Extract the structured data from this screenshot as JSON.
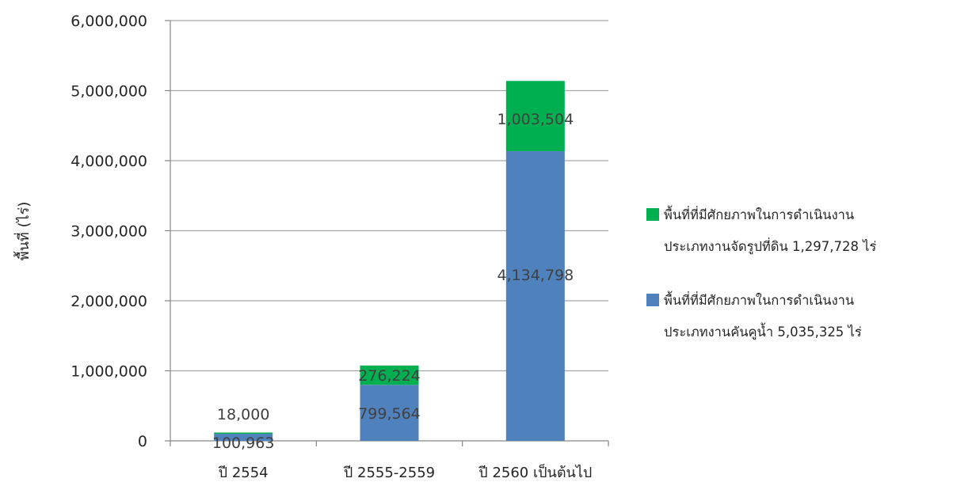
{
  "chart_data": {
    "type": "bar",
    "stacked": true,
    "title": "",
    "xlabel": "",
    "ylabel": "พื้นที่ (ไร่)",
    "ylim": [
      0,
      6000000
    ],
    "yticks": [
      "0",
      "1,000,000",
      "2,000,000",
      "3,000,000",
      "4,000,000",
      "5,000,000",
      "6,000,000"
    ],
    "categories": [
      "ปี 2554",
      "ปี 2555-2559",
      "ปี 2560 เป็นต้นไป"
    ],
    "grid": true,
    "legend_position": "right",
    "series": [
      {
        "name": "พื้นที่ที่มีศักยภาพในการดำเนินงาน ประเภทงานคันคูน้ำ 5,035,325 ไร่",
        "legend_lines": [
          "พื้นที่ที่มีศักยภาพในการดำเนินงาน",
          "ประเภทงานคันคูน้ำ 5,035,325 ไร่"
        ],
        "color": "#4f81bd",
        "values": [
          100963,
          799564,
          4134798
        ],
        "labels": [
          "100,963",
          "799,564",
          "4,134,798"
        ]
      },
      {
        "name": "พื้นที่ที่มีศักยภาพในการดำเนินงาน ประเภทงานจัดรูปที่ดิน 1,297,728 ไร่",
        "legend_lines": [
          "พื้นที่ที่มีศักยภาพในการดำเนินงาน",
          "ประเภทงานจัดรูปที่ดิน 1,297,728 ไร่"
        ],
        "color": "#00b050",
        "values": [
          18000,
          276224,
          1003504
        ],
        "labels": [
          "18,000",
          "276,224",
          "1,003,504"
        ]
      }
    ]
  }
}
